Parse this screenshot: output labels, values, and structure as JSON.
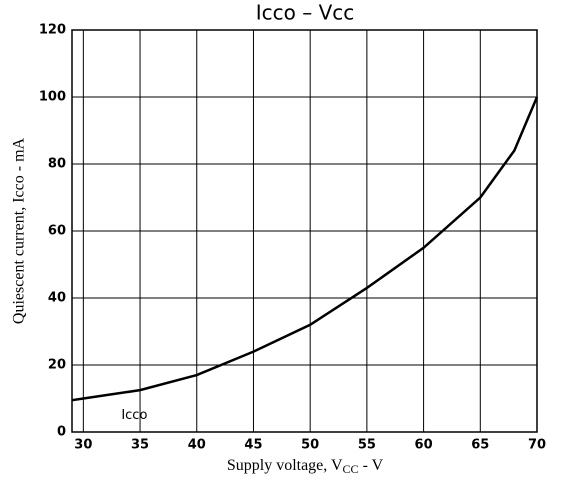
{
  "chart_data": {
    "type": "line",
    "title": "Icco – Vcc",
    "xlabel": {
      "main": "Supply voltage, V",
      "sub": "CC",
      "tail": " - V"
    },
    "ylabel": "Quiescent current, Icco - mA",
    "annotation": {
      "text": "Icco",
      "x": 34.5,
      "y": 5
    },
    "x": [
      29,
      30,
      35,
      40,
      45,
      50,
      55,
      60,
      65,
      68,
      70
    ],
    "series": [
      {
        "name": "Icco",
        "color": "#000000",
        "values": [
          9.5,
          10,
          12.5,
          17,
          24,
          32,
          43,
          55,
          70,
          84,
          100
        ]
      }
    ],
    "xlim": [
      29,
      70
    ],
    "xticks": [
      30,
      35,
      40,
      45,
      50,
      55,
      60,
      65,
      70
    ],
    "ylim": [
      0,
      120
    ],
    "yticks": [
      0,
      20,
      40,
      60,
      80,
      100,
      120
    ],
    "grid": true
  }
}
